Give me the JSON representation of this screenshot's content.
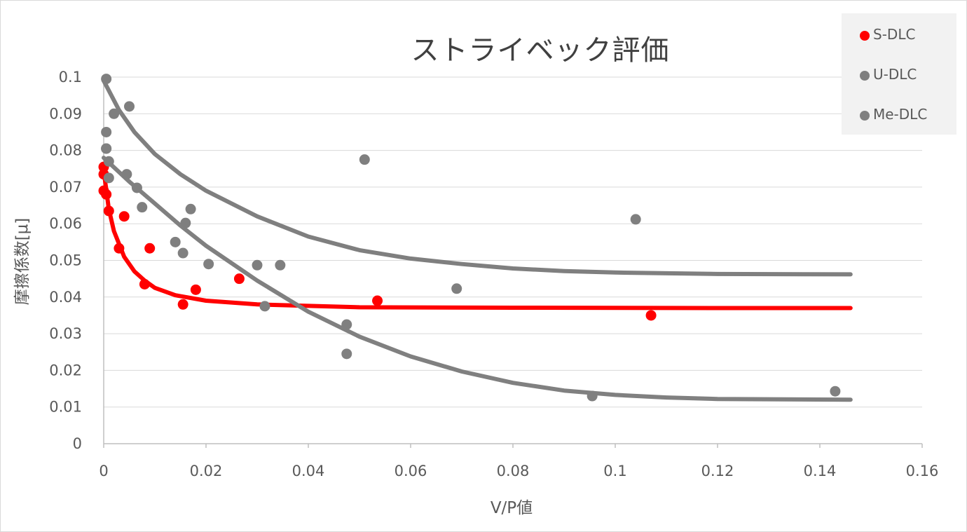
{
  "chart_data": {
    "type": "scatter",
    "title": "ストライベック評価",
    "xlabel": "V/P値",
    "ylabel": "摩擦係数[μ]",
    "xlim": [
      0,
      0.16
    ],
    "ylim": [
      0,
      0.1
    ],
    "x_ticks": [
      "0",
      "0.02",
      "0.04",
      "0.06",
      "0.08",
      "0.1",
      "0.12",
      "0.14",
      "0.16"
    ],
    "y_ticks": [
      "0",
      "0.01",
      "0.02",
      "0.03",
      "0.04",
      "0.05",
      "0.06",
      "0.07",
      "0.08",
      "0.09",
      "0.1"
    ],
    "grid": "horizontal",
    "legend_position": "top-right",
    "series": [
      {
        "name": "S-DLC",
        "color": "#ff0000",
        "points": [
          [
            0.0,
            0.0755
          ],
          [
            0.0,
            0.0735
          ],
          [
            0.0,
            0.069
          ],
          [
            0.0005,
            0.068
          ],
          [
            0.001,
            0.0635
          ],
          [
            0.003,
            0.0533
          ],
          [
            0.004,
            0.062
          ],
          [
            0.008,
            0.0435
          ],
          [
            0.009,
            0.0533
          ],
          [
            0.0155,
            0.038
          ],
          [
            0.018,
            0.042
          ],
          [
            0.0265,
            0.045
          ],
          [
            0.0535,
            0.039
          ],
          [
            0.107,
            0.035
          ]
        ],
        "trend": [
          [
            0.0,
            0.0745
          ],
          [
            0.001,
            0.064
          ],
          [
            0.002,
            0.058
          ],
          [
            0.004,
            0.051
          ],
          [
            0.006,
            0.047
          ],
          [
            0.008,
            0.0445
          ],
          [
            0.01,
            0.0425
          ],
          [
            0.014,
            0.0405
          ],
          [
            0.02,
            0.039
          ],
          [
            0.03,
            0.038
          ],
          [
            0.05,
            0.0372
          ],
          [
            0.08,
            0.0371
          ],
          [
            0.12,
            0.037
          ],
          [
            0.146,
            0.037
          ]
        ]
      },
      {
        "name": "U-DLC",
        "color": "#7f7f7f",
        "points": [
          [
            0.0005,
            0.0995
          ],
          [
            0.002,
            0.09
          ],
          [
            0.005,
            0.092
          ],
          [
            0.0005,
            0.085
          ],
          [
            0.0005,
            0.0805
          ],
          [
            0.001,
            0.077
          ],
          [
            0.0045,
            0.0735
          ],
          [
            0.0065,
            0.0698
          ],
          [
            0.0075,
            0.0645
          ],
          [
            0.016,
            0.0602
          ],
          [
            0.017,
            0.064
          ],
          [
            0.03,
            0.0487
          ],
          [
            0.0345,
            0.0487
          ],
          [
            0.051,
            0.0775
          ],
          [
            0.069,
            0.0423
          ],
          [
            0.104,
            0.0612
          ]
        ],
        "trend": [
          [
            0.0,
            0.099
          ],
          [
            0.003,
            0.091
          ],
          [
            0.006,
            0.085
          ],
          [
            0.01,
            0.079
          ],
          [
            0.015,
            0.0735
          ],
          [
            0.02,
            0.069
          ],
          [
            0.03,
            0.062
          ],
          [
            0.04,
            0.0565
          ],
          [
            0.05,
            0.0528
          ],
          [
            0.06,
            0.0505
          ],
          [
            0.07,
            0.049
          ],
          [
            0.08,
            0.0478
          ],
          [
            0.09,
            0.0471
          ],
          [
            0.1,
            0.0467
          ],
          [
            0.12,
            0.0463
          ],
          [
            0.146,
            0.0462
          ]
        ]
      },
      {
        "name": "Me-DLC",
        "color": "#808080",
        "points": [
          [
            0.0005,
            0.0805
          ],
          [
            0.001,
            0.0725
          ],
          [
            0.014,
            0.055
          ],
          [
            0.0155,
            0.052
          ],
          [
            0.0205,
            0.049
          ],
          [
            0.0315,
            0.0375
          ],
          [
            0.0475,
            0.0325
          ],
          [
            0.0475,
            0.0245
          ],
          [
            0.0955,
            0.013
          ],
          [
            0.143,
            0.0143
          ]
        ],
        "trend": [
          [
            0.0,
            0.078
          ],
          [
            0.005,
            0.0715
          ],
          [
            0.01,
            0.0655
          ],
          [
            0.015,
            0.0595
          ],
          [
            0.02,
            0.054
          ],
          [
            0.03,
            0.0445
          ],
          [
            0.04,
            0.036
          ],
          [
            0.05,
            0.0292
          ],
          [
            0.06,
            0.0238
          ],
          [
            0.07,
            0.0197
          ],
          [
            0.08,
            0.0166
          ],
          [
            0.09,
            0.0145
          ],
          [
            0.1,
            0.0133
          ],
          [
            0.11,
            0.0126
          ],
          [
            0.12,
            0.0122
          ],
          [
            0.146,
            0.012
          ]
        ]
      }
    ]
  }
}
